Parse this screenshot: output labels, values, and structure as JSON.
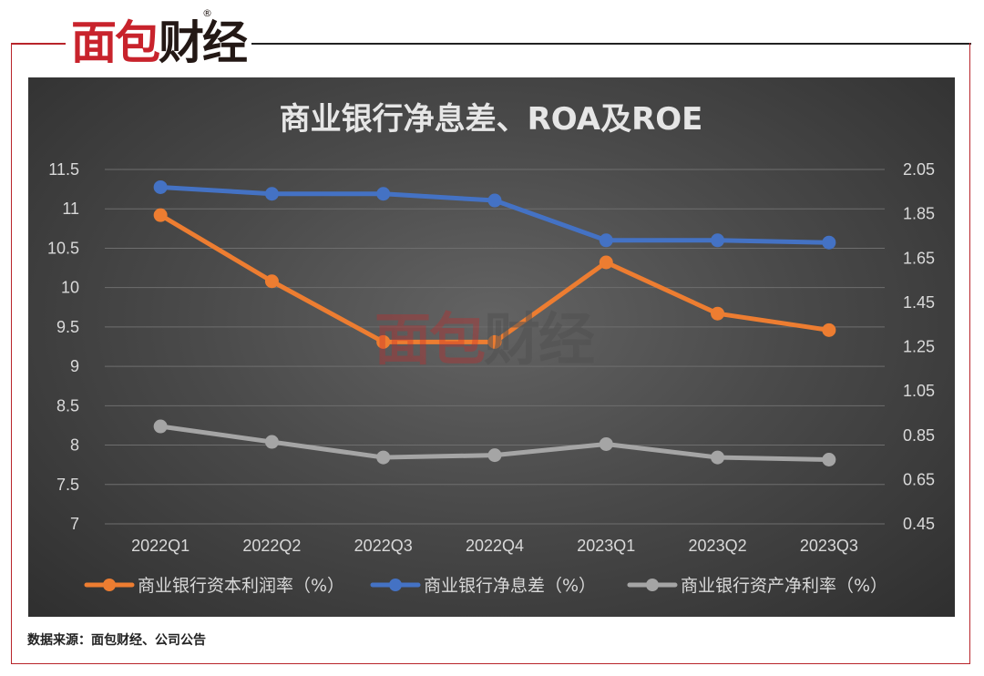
{
  "brand": {
    "logo_red": "面包",
    "logo_dark": "财经",
    "reg_mark": "®"
  },
  "watermark": {
    "red": "面包",
    "dark": "财经"
  },
  "source_note": "数据来源：面包财经、公司公告",
  "colors": {
    "frame": "#b8242a",
    "roe": "#ed7d31",
    "nim": "#4472c4",
    "roa": "#a5a5a5",
    "text": "#d9d9d9"
  },
  "chart_data": {
    "type": "line",
    "title": "商业银行净息差、ROA及ROE",
    "categories": [
      "2022Q1",
      "2022Q2",
      "2022Q3",
      "2022Q4",
      "2023Q1",
      "2023Q2",
      "2023Q3"
    ],
    "y_left": {
      "ticks": [
        "11.5",
        "11",
        "10.5",
        "10",
        "9.5",
        "9",
        "8.5",
        "8",
        "7.5",
        "7"
      ],
      "range": [
        7,
        11.5
      ]
    },
    "y_right": {
      "ticks": [
        "2.05",
        "1.85",
        "1.65",
        "1.45",
        "1.25",
        "1.05",
        "0.85",
        "0.65",
        "0.45"
      ],
      "range": [
        0.45,
        2.05
      ]
    },
    "series": [
      {
        "name": "商业银行资本利润率（%）",
        "axis": "left",
        "color": "#ed7d31",
        "values": [
          10.92,
          10.08,
          9.31,
          9.31,
          10.32,
          9.67,
          9.46
        ]
      },
      {
        "name": "商业银行净息差（%）",
        "axis": "right",
        "color": "#4472c4",
        "values": [
          1.97,
          1.94,
          1.94,
          1.91,
          1.73,
          1.73,
          1.72
        ]
      },
      {
        "name": "商业银行资产净利率（%）",
        "axis": "right",
        "color": "#a5a5a5",
        "values": [
          0.89,
          0.82,
          0.75,
          0.76,
          0.81,
          0.75,
          0.74
        ]
      }
    ],
    "grid": true,
    "legend_position": "bottom"
  }
}
